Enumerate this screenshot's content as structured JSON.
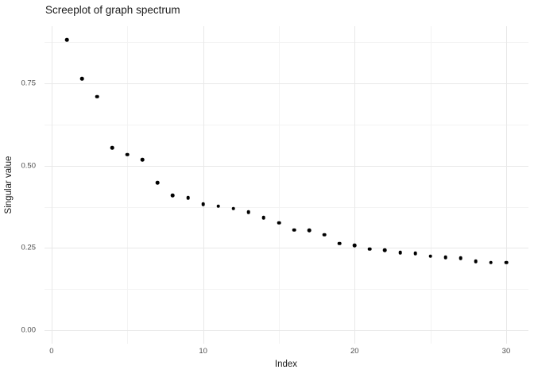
{
  "title": "Screeplot of graph spectrum",
  "chart_data": {
    "type": "scatter",
    "title": "Screeplot of graph spectrum",
    "xlabel": "Index",
    "ylabel": "Singular value",
    "x": [
      1,
      2,
      3,
      4,
      5,
      6,
      7,
      8,
      9,
      10,
      11,
      12,
      13,
      14,
      15,
      16,
      17,
      18,
      19,
      20,
      21,
      22,
      23,
      24,
      25,
      26,
      27,
      28,
      29,
      30
    ],
    "y": [
      0.883,
      0.765,
      0.71,
      0.555,
      0.534,
      0.518,
      0.448,
      0.41,
      0.403,
      0.383,
      0.377,
      0.37,
      0.359,
      0.342,
      0.326,
      0.305,
      0.303,
      0.29,
      0.264,
      0.258,
      0.247,
      0.243,
      0.236,
      0.233,
      0.225,
      0.222,
      0.219,
      0.21,
      0.206,
      0.206
    ],
    "xlim": [
      -0.47,
      31.47
    ],
    "ylim": [
      -0.041,
      0.924
    ],
    "x_ticks": [
      0,
      10,
      20,
      30
    ],
    "x_tick_labels": [
      "0",
      "10",
      "20",
      "30"
    ],
    "x_minor_ticks": [
      5,
      15,
      25
    ],
    "y_ticks": [
      0,
      0.25,
      0.5,
      0.75
    ],
    "y_tick_labels": [
      "0.00",
      "0.25",
      "0.50",
      "0.75"
    ],
    "y_minor_ticks": [
      0.125,
      0.375,
      0.625,
      0.875
    ],
    "grid": true,
    "legend_position": "none",
    "colors": {
      "point": "#000000",
      "grid_major": "#e8e8e8",
      "grid_minor": "#f3f3f3",
      "background": "#ffffff",
      "tick_label": "#4d4d4d",
      "axis_title": "#1a1a1a",
      "title": "#1a1a1a"
    }
  }
}
